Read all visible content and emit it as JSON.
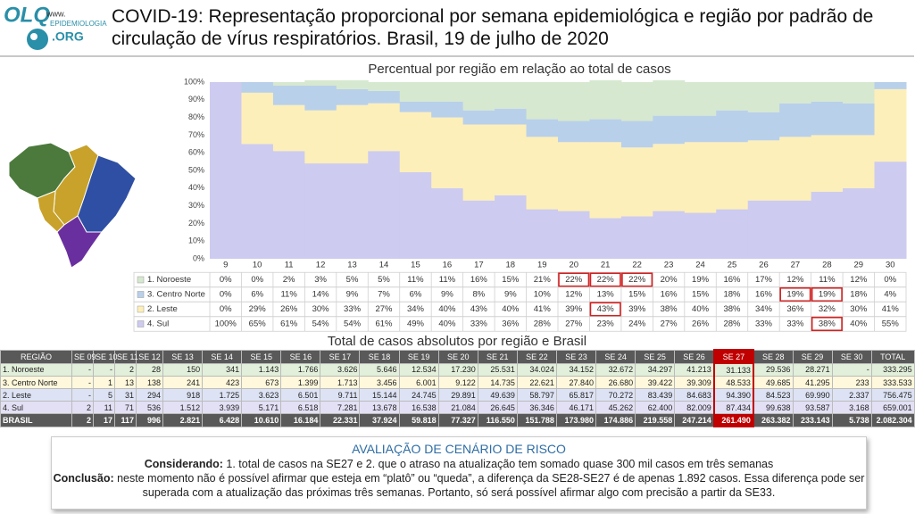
{
  "header": {
    "logo": {
      "mark": "OLQ",
      "site": "www.",
      "name": "EPIDEMIOLOGIA",
      "domain": ".ORG"
    },
    "title": "COVID-19: Representação proporcional por semana epidemiológica e região por padrão de circulação de vírus respiratórios. Brasil, 19 de julho de 2020"
  },
  "chart_data": {
    "type": "stacked_step_area",
    "title": "Percentual por região em relação ao total de casos",
    "x": [
      9,
      10,
      11,
      12,
      13,
      14,
      15,
      16,
      17,
      18,
      19,
      20,
      21,
      22,
      23,
      24,
      25,
      26,
      27,
      28,
      29,
      30
    ],
    "series": [
      {
        "name": "1. Noroeste",
        "color": "#d6e8cf",
        "values": [
          0,
          0,
          2,
          3,
          5,
          5,
          11,
          11,
          16,
          15,
          21,
          22,
          22,
          22,
          20,
          19,
          16,
          17,
          12,
          11,
          12,
          0
        ],
        "value_labels": [
          "0%",
          "0%",
          "2%",
          "3%",
          "5%",
          "5%",
          "11%",
          "11%",
          "16%",
          "15%",
          "21%",
          "22%",
          "22%",
          "22%",
          "20%",
          "19%",
          "16%",
          "17%",
          "12%",
          "11%",
          "12%",
          "0%"
        ],
        "highlighted_weeks": [
          20,
          21,
          22
        ]
      },
      {
        "name": "3. Centro Norte",
        "color": "#b9d0ea",
        "values": [
          0,
          6,
          11,
          14,
          9,
          7,
          6,
          9,
          8,
          9,
          10,
          12,
          13,
          15,
          16,
          15,
          18,
          16,
          19,
          19,
          18,
          4
        ],
        "value_labels": [
          "0%",
          "6%",
          "11%",
          "14%",
          "9%",
          "7%",
          "6%",
          "9%",
          "8%",
          "9%",
          "10%",
          "12%",
          "13%",
          "15%",
          "16%",
          "15%",
          "18%",
          "16%",
          "19%",
          "19%",
          "18%",
          "4%"
        ],
        "highlighted_weeks": [
          27,
          28
        ]
      },
      {
        "name": "2. Leste",
        "color": "#fdefb9",
        "values": [
          0,
          29,
          26,
          30,
          33,
          27,
          34,
          40,
          43,
          40,
          41,
          39,
          43,
          39,
          38,
          40,
          38,
          34,
          36,
          32,
          30,
          41
        ],
        "value_labels": [
          "0%",
          "29%",
          "26%",
          "30%",
          "33%",
          "27%",
          "34%",
          "40%",
          "43%",
          "40%",
          "41%",
          "39%",
          "43%",
          "39%",
          "38%",
          "40%",
          "38%",
          "34%",
          "36%",
          "32%",
          "30%",
          "41%"
        ],
        "highlighted_weeks": [
          21
        ]
      },
      {
        "name": "4. Sul",
        "color": "#cdcbef",
        "values": [
          100,
          65,
          61,
          54,
          54,
          61,
          49,
          40,
          33,
          36,
          28,
          27,
          23,
          24,
          27,
          26,
          28,
          33,
          33,
          38,
          40,
          55
        ],
        "value_labels": [
          "100%",
          "65%",
          "61%",
          "54%",
          "54%",
          "61%",
          "49%",
          "40%",
          "33%",
          "36%",
          "28%",
          "27%",
          "23%",
          "24%",
          "27%",
          "26%",
          "28%",
          "33%",
          "33%",
          "38%",
          "40%",
          "55%"
        ],
        "highlighted_weeks": [
          28
        ]
      }
    ],
    "ylim": [
      0,
      100
    ],
    "yticks": [
      {
        "value": 0,
        "label": "0%"
      },
      {
        "value": 10,
        "label": "10%"
      },
      {
        "value": 20,
        "label": "20%"
      },
      {
        "value": 30,
        "label": "30%"
      },
      {
        "value": 40,
        "label": "40%"
      },
      {
        "value": 50,
        "label": "50%"
      },
      {
        "value": 60,
        "label": "60%"
      },
      {
        "value": 70,
        "label": "70%"
      },
      {
        "value": 80,
        "label": "80%"
      },
      {
        "value": 90,
        "label": "90%"
      },
      {
        "value": 100,
        "label": "100%"
      }
    ],
    "grid": false
  },
  "table": {
    "title": "Total de casos absolutos por região e Brasil",
    "header": [
      "REGIÃO",
      "SE 09",
      "SE 10",
      "SE 11",
      "SE 12",
      "SE 13",
      "SE 14",
      "SE 15",
      "SE 16",
      "SE 17",
      "SE 18",
      "SE 19",
      "SE 20",
      "SE 21",
      "SE 22",
      "SE 23",
      "SE 24",
      "SE 25",
      "SE 26",
      "SE 27",
      "SE 28",
      "SE 29",
      "SE 30",
      "TOTAL"
    ],
    "rows": [
      [
        "1. Noroeste",
        "-",
        "-",
        "2",
        "28",
        "150",
        "341",
        "1.143",
        "1.766",
        "3.626",
        "5.646",
        "12.534",
        "17.230",
        "25.531",
        "34.024",
        "34.152",
        "32.672",
        "34.297",
        "41.213",
        "31.133",
        "29.536",
        "28.271",
        "-",
        "333.295"
      ],
      [
        "3. Centro Norte",
        "-",
        "1",
        "13",
        "138",
        "241",
        "423",
        "673",
        "1.399",
        "1.713",
        "3.456",
        "6.001",
        "9.122",
        "14.735",
        "22.621",
        "27.840",
        "26.680",
        "39.422",
        "39.309",
        "48.533",
        "49.685",
        "41.295",
        "233",
        "333.533"
      ],
      [
        "2. Leste",
        "-",
        "5",
        "31",
        "294",
        "918",
        "1.725",
        "3.623",
        "6.501",
        "9.711",
        "15.144",
        "24.745",
        "29.891",
        "49.639",
        "58.797",
        "65.817",
        "70.272",
        "83.439",
        "84.683",
        "94.390",
        "84.523",
        "69.990",
        "2.337",
        "756.475"
      ],
      [
        "4. Sul",
        "2",
        "11",
        "71",
        "536",
        "1.512",
        "3.939",
        "5.171",
        "6.518",
        "7.281",
        "13.678",
        "16.538",
        "21.084",
        "26.645",
        "36.346",
        "46.171",
        "45.262",
        "62.400",
        "82.009",
        "87.434",
        "99.638",
        "93.587",
        "3.168",
        "659.001"
      ],
      [
        "BRASIL",
        "2",
        "17",
        "117",
        "996",
        "2.821",
        "6.428",
        "10.610",
        "16.184",
        "22.331",
        "37.924",
        "59.818",
        "77.327",
        "116.550",
        "151.788",
        "173.980",
        "174.886",
        "219.558",
        "247.214",
        "261.490",
        "263.382",
        "233.143",
        "5.738",
        "2.082.304"
      ]
    ],
    "row_colors": [
      "#e2efda",
      "#fff8dc",
      "#dde3f4",
      "#e3e0f5",
      "#595959"
    ],
    "highlight_column": "SE 27"
  },
  "assessment": {
    "title": "AVALIAÇÃO DE CENÁRIO DE RISCO",
    "considering_label": "Considerando:",
    "considering": "1. total de casos na SE27 e 2. que o atraso na atualização tem somado quase 300 mil casos em três semanas",
    "conclusion_label": "Conclusão:",
    "conclusion": "neste momento não é possível afirmar que esteja em “platô” ou “queda”, a diferença da SE28-SE27 é de apenas 1.892 casos. Essa diferença pode ser superada com a atualização das próximas três semanas. Portanto, só será possível afirmar algo com precisão a partir da SE33."
  }
}
